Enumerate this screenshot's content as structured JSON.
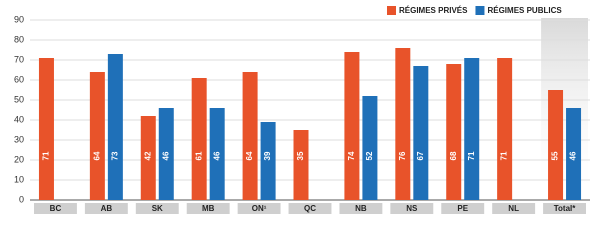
{
  "chart_data": {
    "type": "grouped-bar",
    "categories": [
      "BC",
      "AB",
      "SK",
      "MB",
      "ON¹",
      "QC",
      "NB",
      "NS",
      "PE",
      "NL",
      "Total*"
    ],
    "series": [
      {
        "name": "RÉGIMES PRIVÉS",
        "color": "#e8532a",
        "values": [
          71,
          64,
          42,
          61,
          64,
          35,
          74,
          76,
          68,
          71,
          55
        ]
      },
      {
        "name": "RÉGIMES PUBLICS",
        "color": "#1f70b8",
        "values": [
          null,
          73,
          46,
          46,
          39,
          null,
          52,
          67,
          71,
          null,
          46
        ]
      }
    ],
    "ylim": [
      0,
      90
    ],
    "yticks": [
      0,
      10,
      20,
      30,
      40,
      50,
      60,
      70,
      80,
      90
    ],
    "grid": true,
    "legend": "top-right"
  }
}
